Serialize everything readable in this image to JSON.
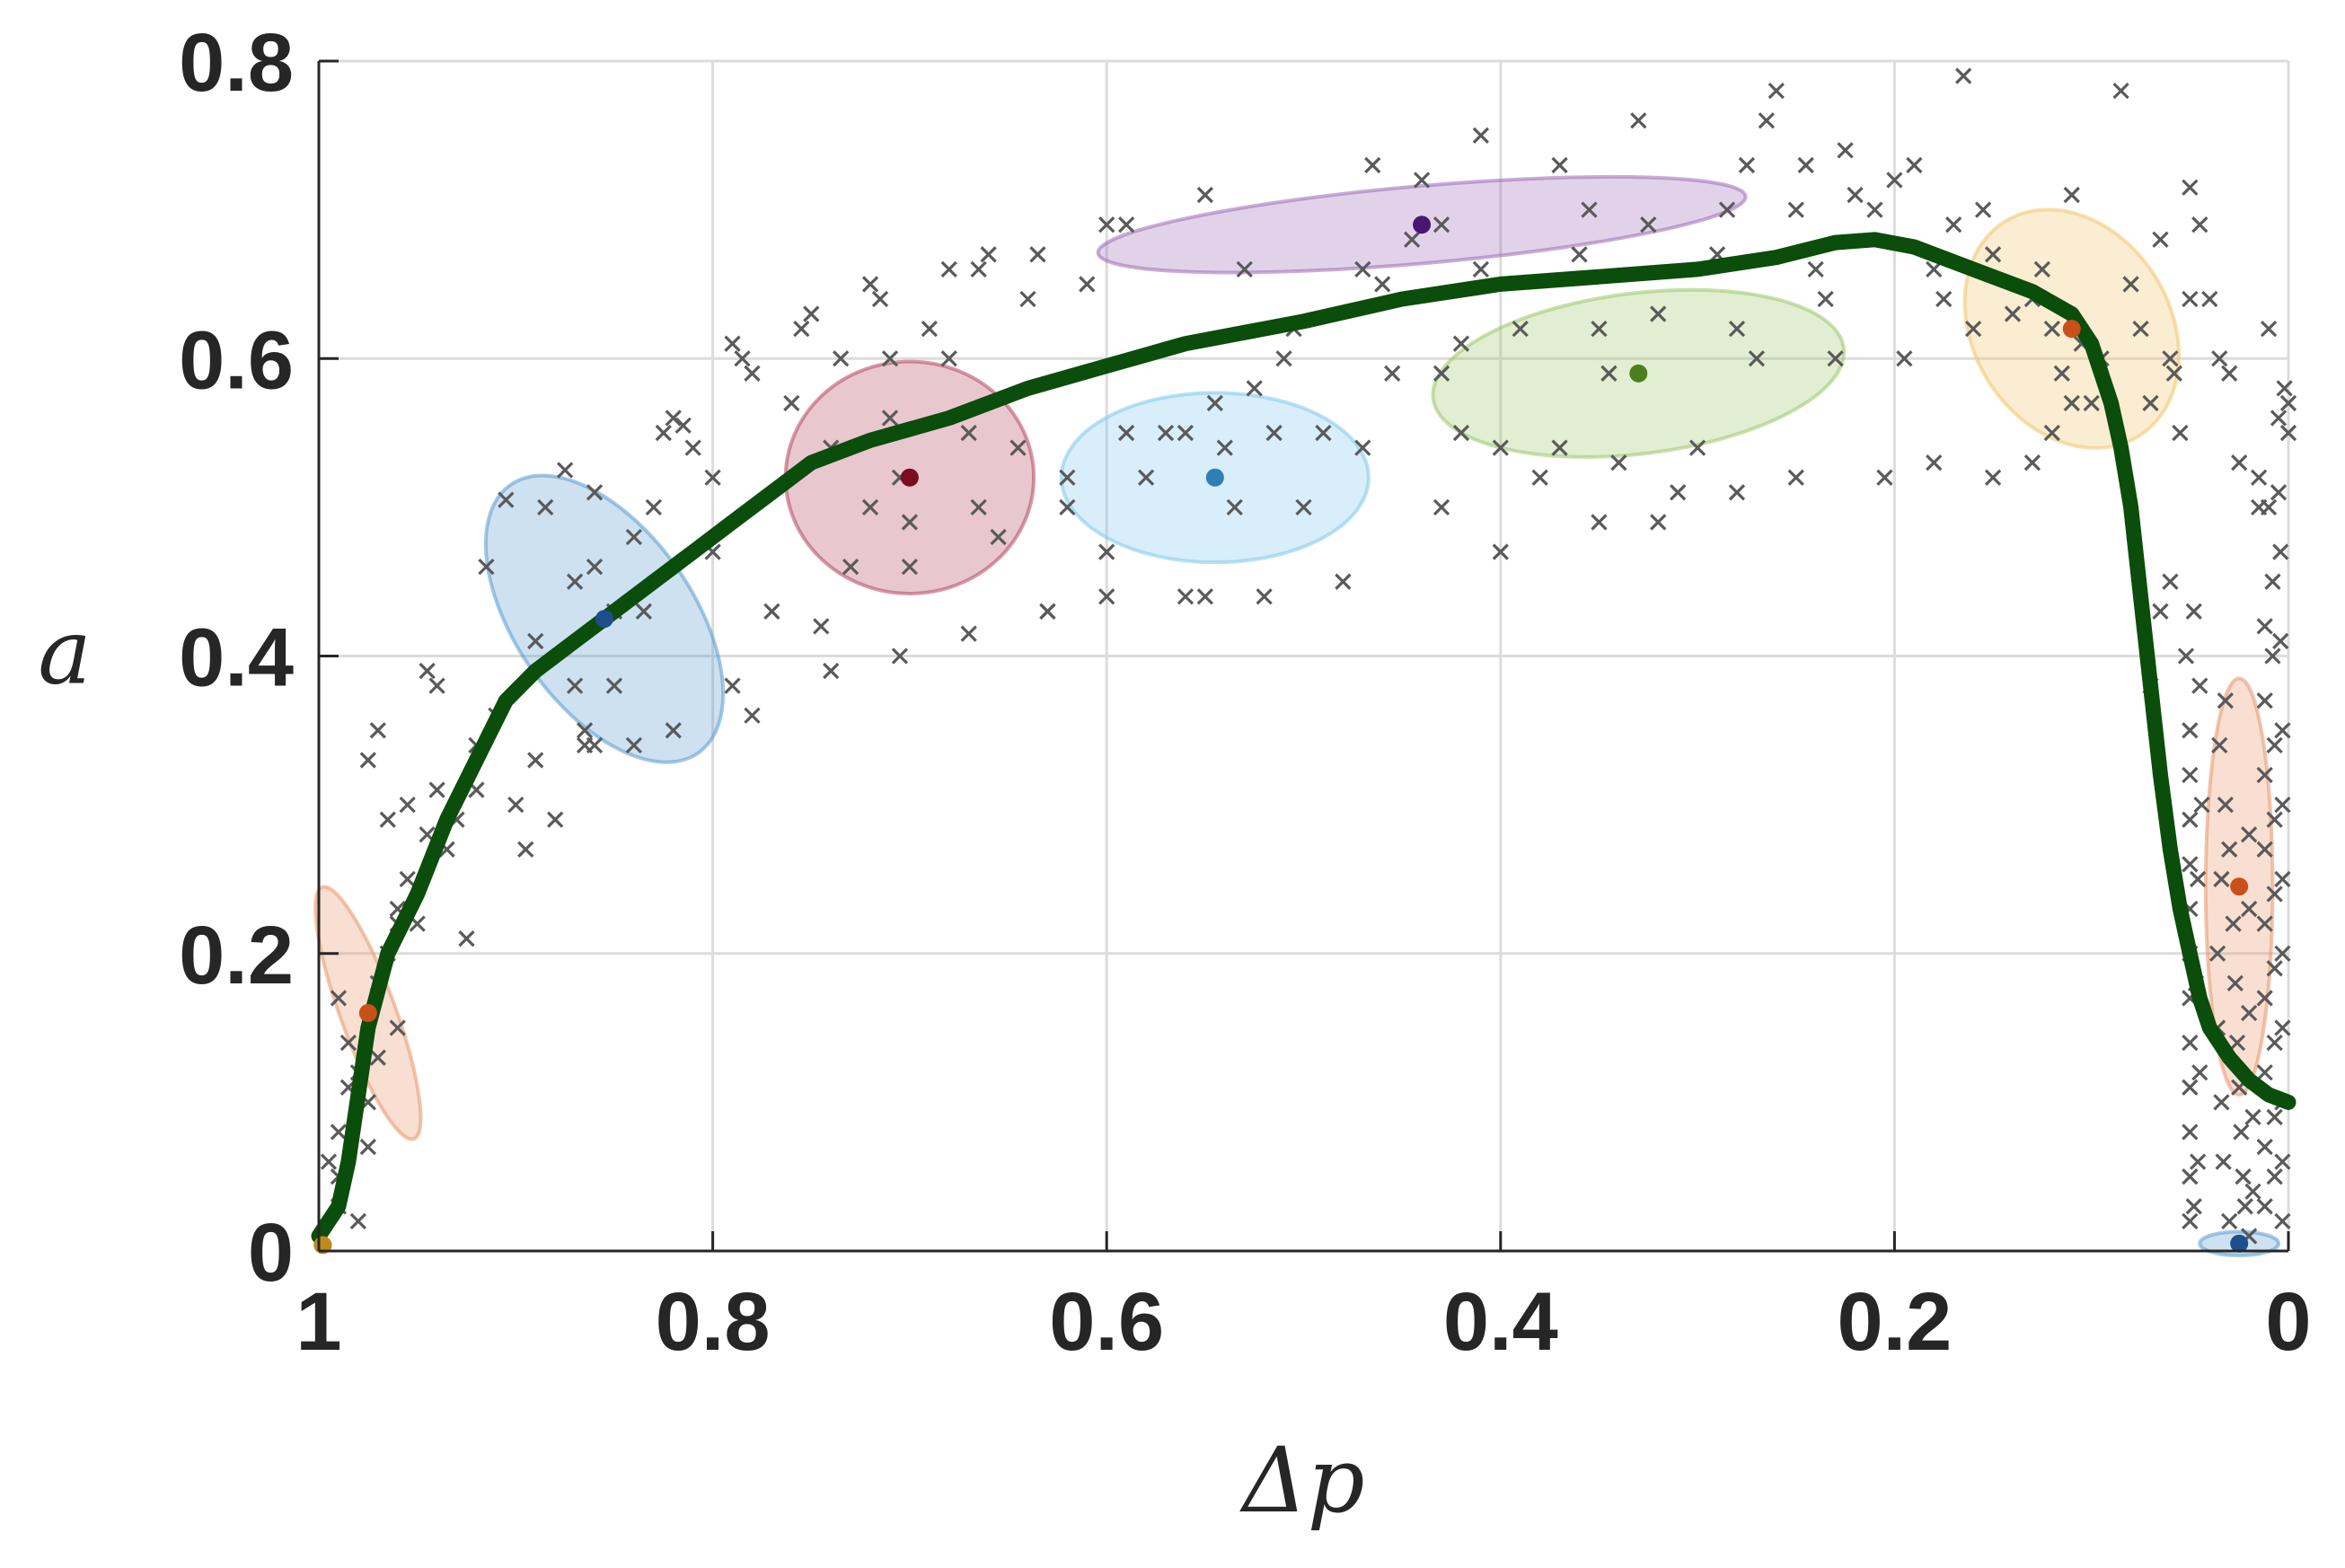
{
  "chart_data": {
    "type": "scatter",
    "title": "",
    "xlabel": "Δp",
    "ylabel": "a",
    "xlim": [
      1,
      0
    ],
    "ylim": [
      0,
      0.8
    ],
    "x_reversed": true,
    "grid": true,
    "xticks": [
      1,
      0.8,
      0.6,
      0.4,
      0.2,
      0
    ],
    "xtick_labels": [
      "1",
      "0.8",
      "0.6",
      "0.4",
      "0.2",
      "0"
    ],
    "yticks": [
      0,
      0.2,
      0.4,
      0.6,
      0.8
    ],
    "ytick_labels": [
      "0",
      "0.2",
      "0.4",
      "0.6",
      "0.8"
    ],
    "trend_line": {
      "name": "trend",
      "color": "#0b4d0b",
      "x": [
        1.0,
        0.99,
        0.985,
        0.975,
        0.965,
        0.95,
        0.935,
        0.92,
        0.905,
        0.89,
        0.87,
        0.85,
        0.83,
        0.81,
        0.79,
        0.77,
        0.75,
        0.72,
        0.68,
        0.64,
        0.6,
        0.56,
        0.5,
        0.45,
        0.4,
        0.35,
        0.3,
        0.26,
        0.23,
        0.21,
        0.19,
        0.16,
        0.13,
        0.11,
        0.1,
        0.09,
        0.085,
        0.08,
        0.075,
        0.07,
        0.065,
        0.06,
        0.055,
        0.05,
        0.045,
        0.04,
        0.03,
        0.02,
        0.01,
        0.0
      ],
      "y": [
        0.01,
        0.03,
        0.06,
        0.15,
        0.2,
        0.24,
        0.29,
        0.33,
        0.37,
        0.39,
        0.41,
        0.43,
        0.45,
        0.47,
        0.49,
        0.51,
        0.53,
        0.545,
        0.56,
        0.58,
        0.595,
        0.61,
        0.625,
        0.64,
        0.65,
        0.655,
        0.66,
        0.668,
        0.678,
        0.68,
        0.675,
        0.66,
        0.645,
        0.63,
        0.61,
        0.57,
        0.54,
        0.5,
        0.44,
        0.38,
        0.32,
        0.27,
        0.23,
        0.2,
        0.17,
        0.15,
        0.13,
        0.115,
        0.105,
        0.1
      ]
    },
    "clusters": [
      {
        "name": "cluster-1",
        "color": "#e8956b",
        "center_color": "#c9501a",
        "center": [
          0.975,
          0.16
        ],
        "rx": 0.014,
        "ry": 0.09,
        "rotation": -20
      },
      {
        "name": "cluster-2",
        "color": "#5b9ad0",
        "center_color": "#1f4e8c",
        "center": [
          0.855,
          0.425
        ],
        "rx": 0.045,
        "ry": 0.11,
        "rotation": -35
      },
      {
        "name": "cluster-3",
        "color": "#b5475f",
        "center_color": "#7a0d1e",
        "center": [
          0.7,
          0.52
        ],
        "rx": 0.063,
        "ry": 0.078,
        "rotation": 0
      },
      {
        "name": "cluster-4",
        "color": "#7fc8ef",
        "center_color": "#2e7fb5",
        "center": [
          0.545,
          0.52
        ],
        "rx": 0.078,
        "ry": 0.057,
        "rotation": 0
      },
      {
        "name": "cluster-5",
        "color": "#9b6bb7",
        "center_color": "#4b1670",
        "center": [
          0.44,
          0.69
        ],
        "rx": 0.165,
        "ry": 0.026,
        "rotation": -5
      },
      {
        "name": "cluster-6",
        "color": "#9cc76a",
        "center_color": "#4b7f1d",
        "center": [
          0.33,
          0.59
        ],
        "rx": 0.105,
        "ry": 0.054,
        "rotation": -7
      },
      {
        "name": "cluster-7",
        "color": "#f2c46b",
        "center_color": "#c9501a",
        "center": [
          0.11,
          0.62
        ],
        "rx": 0.05,
        "ry": 0.085,
        "rotation": -32
      },
      {
        "name": "cluster-8",
        "color": "#e8956b",
        "center_color": "#c9501a",
        "center": [
          0.025,
          0.245
        ],
        "rx": 0.017,
        "ry": 0.14,
        "rotation": 0
      },
      {
        "name": "cluster-9",
        "color": "#5b9ad0",
        "center_color": "#1f4e8c",
        "center": [
          0.025,
          0.005
        ],
        "rx": 0.02,
        "ry": 0.008,
        "rotation": 0
      },
      {
        "name": "cluster-10",
        "color": "#f2c46b",
        "center_color": "#c08a1a",
        "center": [
          0.998,
          0.004
        ],
        "rx": 0.004,
        "ry": 0.004,
        "rotation": 0
      }
    ],
    "points": [
      [
        0.99,
        0.03
      ],
      [
        0.99,
        0.05
      ],
      [
        0.99,
        0.08
      ],
      [
        0.985,
        0.11
      ],
      [
        0.985,
        0.14
      ],
      [
        0.98,
        0.12
      ],
      [
        0.975,
        0.1
      ],
      [
        0.97,
        0.13
      ],
      [
        0.97,
        0.18
      ],
      [
        0.965,
        0.2
      ],
      [
        0.96,
        0.23
      ],
      [
        0.955,
        0.25
      ],
      [
        0.95,
        0.22
      ],
      [
        0.96,
        0.15
      ],
      [
        0.975,
        0.07
      ],
      [
        0.98,
        0.02
      ],
      [
        0.965,
        0.29
      ],
      [
        0.955,
        0.3
      ],
      [
        0.945,
        0.28
      ],
      [
        0.94,
        0.31
      ],
      [
        0.935,
        0.27
      ],
      [
        0.93,
        0.29
      ],
      [
        0.92,
        0.31
      ],
      [
        0.92,
        0.34
      ],
      [
        0.925,
        0.21
      ],
      [
        0.97,
        0.35
      ],
      [
        0.975,
        0.33
      ],
      [
        0.96,
        0.22
      ],
      [
        0.99,
        0.17
      ],
      [
        0.995,
        0.06
      ],
      [
        0.945,
        0.39
      ],
      [
        0.94,
        0.38
      ],
      [
        0.915,
        0.46
      ],
      [
        0.91,
        0.36
      ],
      [
        0.9,
        0.3
      ],
      [
        0.895,
        0.27
      ],
      [
        0.88,
        0.29
      ],
      [
        0.89,
        0.33
      ],
      [
        0.905,
        0.505
      ],
      [
        0.89,
        0.41
      ],
      [
        0.885,
        0.5
      ],
      [
        0.875,
        0.525
      ],
      [
        0.87,
        0.38
      ],
      [
        0.86,
        0.46
      ],
      [
        0.86,
        0.51
      ],
      [
        0.865,
        0.35
      ],
      [
        0.85,
        0.43
      ],
      [
        0.84,
        0.48
      ],
      [
        0.835,
        0.43
      ],
      [
        0.83,
        0.5
      ],
      [
        0.825,
        0.55
      ],
      [
        0.82,
        0.56
      ],
      [
        0.815,
        0.555
      ],
      [
        0.81,
        0.54
      ],
      [
        0.82,
        0.35
      ],
      [
        0.84,
        0.34
      ],
      [
        0.86,
        0.34
      ],
      [
        0.865,
        0.34
      ],
      [
        0.87,
        0.45
      ],
      [
        0.85,
        0.38
      ],
      [
        0.8,
        0.52
      ],
      [
        0.8,
        0.47
      ],
      [
        0.79,
        0.38
      ],
      [
        0.78,
        0.36
      ],
      [
        0.785,
        0.6
      ],
      [
        0.79,
        0.61
      ],
      [
        0.78,
        0.59
      ],
      [
        0.77,
        0.43
      ],
      [
        0.76,
        0.57
      ],
      [
        0.755,
        0.62
      ],
      [
        0.75,
        0.63
      ],
      [
        0.74,
        0.54
      ],
      [
        0.735,
        0.6
      ],
      [
        0.73,
        0.46
      ],
      [
        0.745,
        0.42
      ],
      [
        0.74,
        0.39
      ],
      [
        0.72,
        0.65
      ],
      [
        0.715,
        0.64
      ],
      [
        0.71,
        0.6
      ],
      [
        0.705,
        0.52
      ],
      [
        0.7,
        0.49
      ],
      [
        0.7,
        0.46
      ],
      [
        0.705,
        0.4
      ],
      [
        0.71,
        0.56
      ],
      [
        0.72,
        0.5
      ],
      [
        0.69,
        0.62
      ],
      [
        0.68,
        0.6
      ],
      [
        0.67,
        0.55
      ],
      [
        0.665,
        0.5
      ],
      [
        0.67,
        0.415
      ],
      [
        0.68,
        0.66
      ],
      [
        0.665,
        0.66
      ],
      [
        0.66,
        0.67
      ],
      [
        0.655,
        0.48
      ],
      [
        0.645,
        0.54
      ],
      [
        0.64,
        0.64
      ],
      [
        0.635,
        0.67
      ],
      [
        0.63,
        0.43
      ],
      [
        0.62,
        0.52
      ],
      [
        0.61,
        0.65
      ],
      [
        0.6,
        0.69
      ],
      [
        0.59,
        0.69
      ],
      [
        0.59,
        0.55
      ],
      [
        0.6,
        0.44
      ],
      [
        0.58,
        0.52
      ],
      [
        0.57,
        0.55
      ],
      [
        0.56,
        0.55
      ],
      [
        0.55,
        0.71
      ],
      [
        0.545,
        0.57
      ],
      [
        0.54,
        0.54
      ],
      [
        0.535,
        0.5
      ],
      [
        0.55,
        0.44
      ],
      [
        0.53,
        0.66
      ],
      [
        0.52,
        0.44
      ],
      [
        0.51,
        0.6
      ],
      [
        0.5,
        0.5
      ],
      [
        0.49,
        0.55
      ],
      [
        0.48,
        0.45
      ],
      [
        0.47,
        0.54
      ],
      [
        0.47,
        0.66
      ],
      [
        0.465,
        0.73
      ],
      [
        0.46,
        0.65
      ],
      [
        0.455,
        0.59
      ],
      [
        0.445,
        0.68
      ],
      [
        0.44,
        0.72
      ],
      [
        0.43,
        0.69
      ],
      [
        0.43,
        0.59
      ],
      [
        0.42,
        0.61
      ],
      [
        0.41,
        0.75
      ],
      [
        0.41,
        0.66
      ],
      [
        0.42,
        0.55
      ],
      [
        0.4,
        0.47
      ],
      [
        0.39,
        0.62
      ],
      [
        0.38,
        0.52
      ],
      [
        0.37,
        0.54
      ],
      [
        0.37,
        0.73
      ],
      [
        0.36,
        0.67
      ],
      [
        0.355,
        0.7
      ],
      [
        0.35,
        0.62
      ],
      [
        0.345,
        0.59
      ],
      [
        0.34,
        0.53
      ],
      [
        0.33,
        0.76
      ],
      [
        0.325,
        0.69
      ],
      [
        0.32,
        0.63
      ],
      [
        0.31,
        0.51
      ],
      [
        0.3,
        0.54
      ],
      [
        0.29,
        0.67
      ],
      [
        0.285,
        0.7
      ],
      [
        0.28,
        0.62
      ],
      [
        0.275,
        0.73
      ],
      [
        0.27,
        0.6
      ],
      [
        0.265,
        0.76
      ],
      [
        0.26,
        0.78
      ],
      [
        0.25,
        0.7
      ],
      [
        0.245,
        0.73
      ],
      [
        0.24,
        0.66
      ],
      [
        0.235,
        0.64
      ],
      [
        0.23,
        0.6
      ],
      [
        0.225,
        0.74
      ],
      [
        0.22,
        0.71
      ],
      [
        0.21,
        0.7
      ],
      [
        0.205,
        0.52
      ],
      [
        0.2,
        0.72
      ],
      [
        0.195,
        0.6
      ],
      [
        0.19,
        0.73
      ],
      [
        0.18,
        0.66
      ],
      [
        0.175,
        0.64
      ],
      [
        0.17,
        0.69
      ],
      [
        0.165,
        0.79
      ],
      [
        0.16,
        0.62
      ],
      [
        0.155,
        0.7
      ],
      [
        0.15,
        0.67
      ],
      [
        0.14,
        0.63
      ],
      [
        0.13,
        0.64
      ],
      [
        0.125,
        0.66
      ],
      [
        0.12,
        0.62
      ],
      [
        0.115,
        0.59
      ],
      [
        0.11,
        0.71
      ],
      [
        0.105,
        0.61
      ],
      [
        0.1,
        0.57
      ],
      [
        0.095,
        0.6
      ],
      [
        0.085,
        0.78
      ],
      [
        0.08,
        0.65
      ],
      [
        0.075,
        0.62
      ],
      [
        0.07,
        0.57
      ],
      [
        0.065,
        0.68
      ],
      [
        0.06,
        0.6
      ],
      [
        0.058,
        0.59
      ],
      [
        0.055,
        0.55
      ],
      [
        0.05,
        0.64
      ],
      [
        0.05,
        0.715
      ],
      [
        0.045,
        0.69
      ],
      [
        0.04,
        0.64
      ],
      [
        0.035,
        0.6
      ],
      [
        0.03,
        0.59
      ],
      [
        0.025,
        0.53
      ],
      [
        0.015,
        0.5
      ],
      [
        0.01,
        0.62
      ],
      [
        0.005,
        0.56
      ],
      [
        0.002,
        0.58
      ],
      [
        0.06,
        0.45
      ],
      [
        0.065,
        0.43
      ],
      [
        0.07,
        0.38
      ],
      [
        0.13,
        0.53
      ],
      [
        0.12,
        0.55
      ],
      [
        0.11,
        0.57
      ],
      [
        0.15,
        0.52
      ],
      [
        0.18,
        0.53
      ],
      [
        0.25,
        0.52
      ],
      [
        0.28,
        0.51
      ],
      [
        0.32,
        0.49
      ],
      [
        0.35,
        0.49
      ],
      [
        0.4,
        0.54
      ],
      [
        0.43,
        0.5
      ],
      [
        0.505,
        0.62
      ],
      [
        0.515,
        0.55
      ],
      [
        0.525,
        0.58
      ],
      [
        0.56,
        0.44
      ],
      [
        0.6,
        0.47
      ],
      [
        0.62,
        0.5
      ],
      [
        0.63,
        0.43
      ],
      [
        0.05,
        0.35
      ],
      [
        0.05,
        0.32
      ],
      [
        0.05,
        0.29
      ],
      [
        0.05,
        0.26
      ],
      [
        0.05,
        0.23
      ],
      [
        0.05,
        0.2
      ],
      [
        0.05,
        0.17
      ],
      [
        0.05,
        0.14
      ],
      [
        0.05,
        0.11
      ],
      [
        0.05,
        0.08
      ],
      [
        0.05,
        0.05
      ],
      [
        0.05,
        0.02
      ],
      [
        0.052,
        0.4
      ],
      [
        0.048,
        0.43
      ],
      [
        0.045,
        0.38
      ],
      [
        0.044,
        0.3
      ],
      [
        0.046,
        0.25
      ],
      [
        0.047,
        0.18
      ],
      [
        0.045,
        0.12
      ],
      [
        0.046,
        0.06
      ],
      [
        0.048,
        0.03
      ],
      [
        0.035,
        0.34
      ],
      [
        0.032,
        0.3
      ],
      [
        0.03,
        0.27
      ],
      [
        0.028,
        0.22
      ],
      [
        0.027,
        0.18
      ],
      [
        0.026,
        0.14
      ],
      [
        0.025,
        0.11
      ],
      [
        0.024,
        0.08
      ],
      [
        0.023,
        0.05
      ],
      [
        0.022,
        0.03
      ],
      [
        0.02,
        0.01
      ],
      [
        0.03,
        0.02
      ],
      [
        0.033,
        0.06
      ],
      [
        0.034,
        0.1
      ],
      [
        0.036,
        0.15
      ],
      [
        0.036,
        0.2
      ],
      [
        0.034,
        0.25
      ],
      [
        0.032,
        0.37
      ],
      [
        0.02,
        0.28
      ],
      [
        0.02,
        0.23
      ],
      [
        0.02,
        0.16
      ],
      [
        0.018,
        0.09
      ],
      [
        0.018,
        0.04
      ],
      [
        0.012,
        0.42
      ],
      [
        0.012,
        0.37
      ],
      [
        0.012,
        0.32
      ],
      [
        0.012,
        0.27
      ],
      [
        0.012,
        0.22
      ],
      [
        0.012,
        0.17
      ],
      [
        0.012,
        0.12
      ],
      [
        0.012,
        0.07
      ],
      [
        0.012,
        0.03
      ],
      [
        0.008,
        0.45
      ],
      [
        0.008,
        0.4
      ],
      [
        0.007,
        0.34
      ],
      [
        0.007,
        0.29
      ],
      [
        0.007,
        0.24
      ],
      [
        0.007,
        0.19
      ],
      [
        0.007,
        0.14
      ],
      [
        0.007,
        0.09
      ],
      [
        0.007,
        0.05
      ],
      [
        0.004,
        0.47
      ],
      [
        0.004,
        0.41
      ],
      [
        0.003,
        0.35
      ],
      [
        0.003,
        0.3
      ],
      [
        0.003,
        0.25
      ],
      [
        0.003,
        0.2
      ],
      [
        0.003,
        0.15
      ],
      [
        0.003,
        0.1
      ],
      [
        0.003,
        0.06
      ],
      [
        0.003,
        0.02
      ],
      [
        0.015,
        0.52
      ],
      [
        0.01,
        0.5
      ],
      [
        0.005,
        0.51
      ],
      [
        0.0,
        0.57
      ],
      [
        0.0,
        0.55
      ]
    ]
  }
}
